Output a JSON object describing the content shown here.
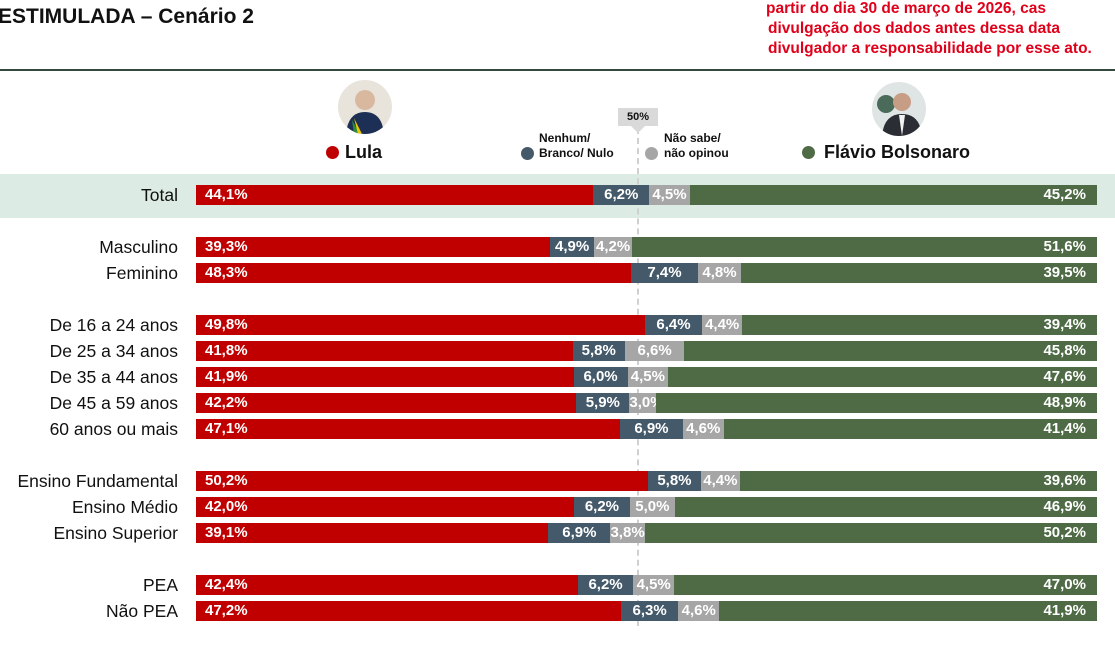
{
  "header": {
    "title": "ESTIMULADA – Cenário 2",
    "notice_lines": [
      "partir do dia 30 de março de 2026, cas",
      "divulgação dos dados antes dessa data",
      "divulgador a responsabilidade por esse ato."
    ]
  },
  "colors": {
    "lula": "#c00000",
    "nenhum": "#44596a",
    "nao_sabe": "#a6a6a6",
    "flavio": "#4e6b45",
    "notice": "#e0001a",
    "band": "#dcebe3"
  },
  "chart_data": {
    "type": "bar",
    "orientation": "horizontal",
    "stacked": true,
    "reference_line": {
      "value": 50,
      "label": "50%"
    },
    "series": [
      {
        "name": "Lula",
        "color": "#c00000",
        "values": [
          44.1,
          39.3,
          48.3,
          49.8,
          41.8,
          41.9,
          42.2,
          47.1,
          50.2,
          42.0,
          39.1,
          42.4,
          47.2
        ]
      },
      {
        "name": "Nenhum/ Branco/ Nulo",
        "color": "#44596a",
        "values": [
          6.2,
          4.9,
          7.4,
          6.4,
          5.8,
          6.0,
          5.9,
          6.9,
          5.8,
          6.2,
          6.9,
          6.2,
          6.3
        ]
      },
      {
        "name": "Não sabe/ não opinou",
        "color": "#a6a6a6",
        "values": [
          4.5,
          4.2,
          4.8,
          4.4,
          6.6,
          4.5,
          3.0,
          4.6,
          4.4,
          5.0,
          3.8,
          4.5,
          4.6
        ]
      },
      {
        "name": "Flávio Bolsonaro",
        "color": "#4e6b45",
        "values": [
          45.2,
          51.6,
          39.5,
          39.4,
          45.8,
          47.6,
          48.9,
          41.4,
          39.6,
          46.9,
          50.2,
          47.0,
          41.9
        ]
      }
    ],
    "categories": [
      "Total",
      "Masculino",
      "Feminino",
      "De 16 a 24 anos",
      "De 25 a 34 anos",
      "De 35 a 44 anos",
      "De 45 a 59 anos",
      "60 anos ou mais",
      "Ensino Fundamental",
      "Ensino Médio",
      "Ensino Superior",
      "PEA",
      "Não PEA"
    ],
    "groups": [
      [
        0
      ],
      [
        1,
        2
      ],
      [
        3,
        4,
        5,
        6,
        7
      ],
      [
        8,
        9,
        10
      ],
      [
        11,
        12
      ]
    ],
    "xlim": [
      0,
      100
    ]
  },
  "legend": {
    "lula": "Lula",
    "nenhum_1": "Nenhum/",
    "nenhum_2": "Branco/ Nulo",
    "nao_sabe_1": "Não sabe/",
    "nao_sabe_2": "não opinou",
    "flavio": "Flávio Bolsonaro"
  }
}
